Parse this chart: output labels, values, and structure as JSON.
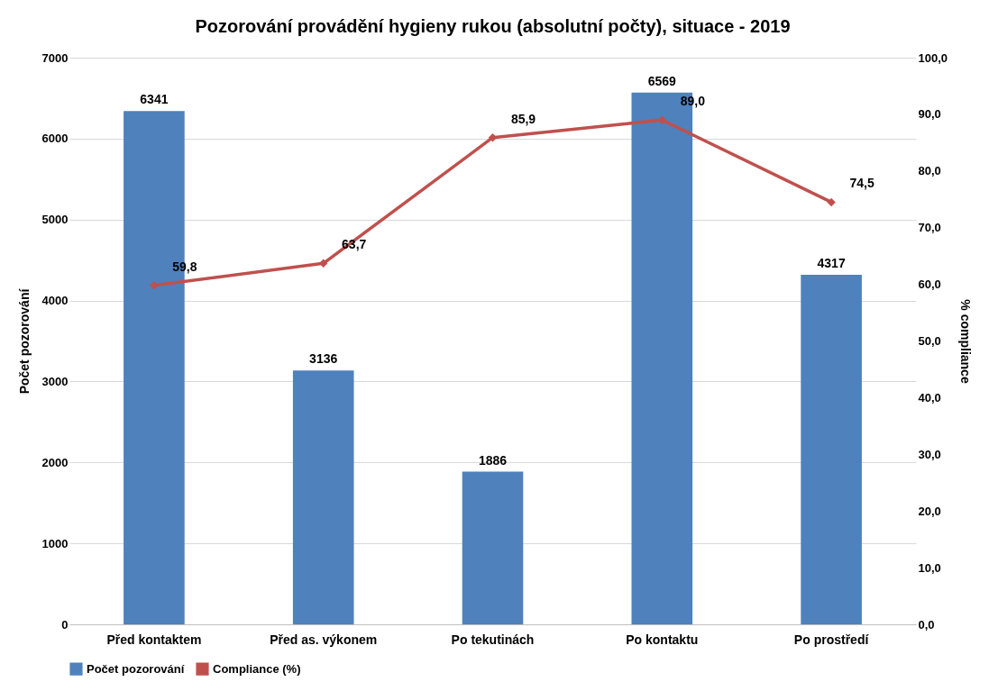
{
  "chart_data": {
    "type": "bar",
    "title": "Pozorování provádění hygieny rukou (absolutní počty), situace - 2019",
    "categories": [
      "Před kontaktem",
      "Před as. výkonem",
      "Po tekutinách",
      "Po kontaktu",
      "Po prostředí"
    ],
    "series": [
      {
        "name": "Počet pozorování",
        "color": "#4f81bd",
        "values": [
          6341,
          3136,
          1886,
          6569,
          4317
        ],
        "value_labels": [
          "6341",
          "3136",
          "1886",
          "6569",
          "4317"
        ]
      },
      {
        "name": "Compliance (%)",
        "type": "line",
        "axis": "y2",
        "color": "#c0504d",
        "values": [
          59.8,
          63.7,
          85.9,
          89.0,
          74.5
        ],
        "value_labels": [
          "59,8",
          "63,7",
          "85,9",
          "89,0",
          "74,5"
        ]
      }
    ],
    "ylabel": "Počet pozorování",
    "y2label": "% compliance",
    "ylim": [
      0,
      7000
    ],
    "yticks": [
      0,
      1000,
      2000,
      3000,
      4000,
      5000,
      6000,
      7000
    ],
    "y2lim": [
      0,
      100
    ],
    "y2ticks": [
      {
        "value": 0,
        "label": "0,0"
      },
      {
        "value": 10,
        "label": "10,0"
      },
      {
        "value": 20,
        "label": "20,0"
      },
      {
        "value": 30,
        "label": "30,0"
      },
      {
        "value": 40,
        "label": "40,0"
      },
      {
        "value": 50,
        "label": "50,0"
      },
      {
        "value": 60,
        "label": "60,0"
      },
      {
        "value": 70,
        "label": "70,0"
      },
      {
        "value": 80,
        "label": "80,0"
      },
      {
        "value": 90,
        "label": "90,0"
      },
      {
        "value": 100,
        "label": "100,0"
      }
    ],
    "grid": "y",
    "legend": "bottom",
    "marker": "diamond",
    "line_style": "solid"
  }
}
